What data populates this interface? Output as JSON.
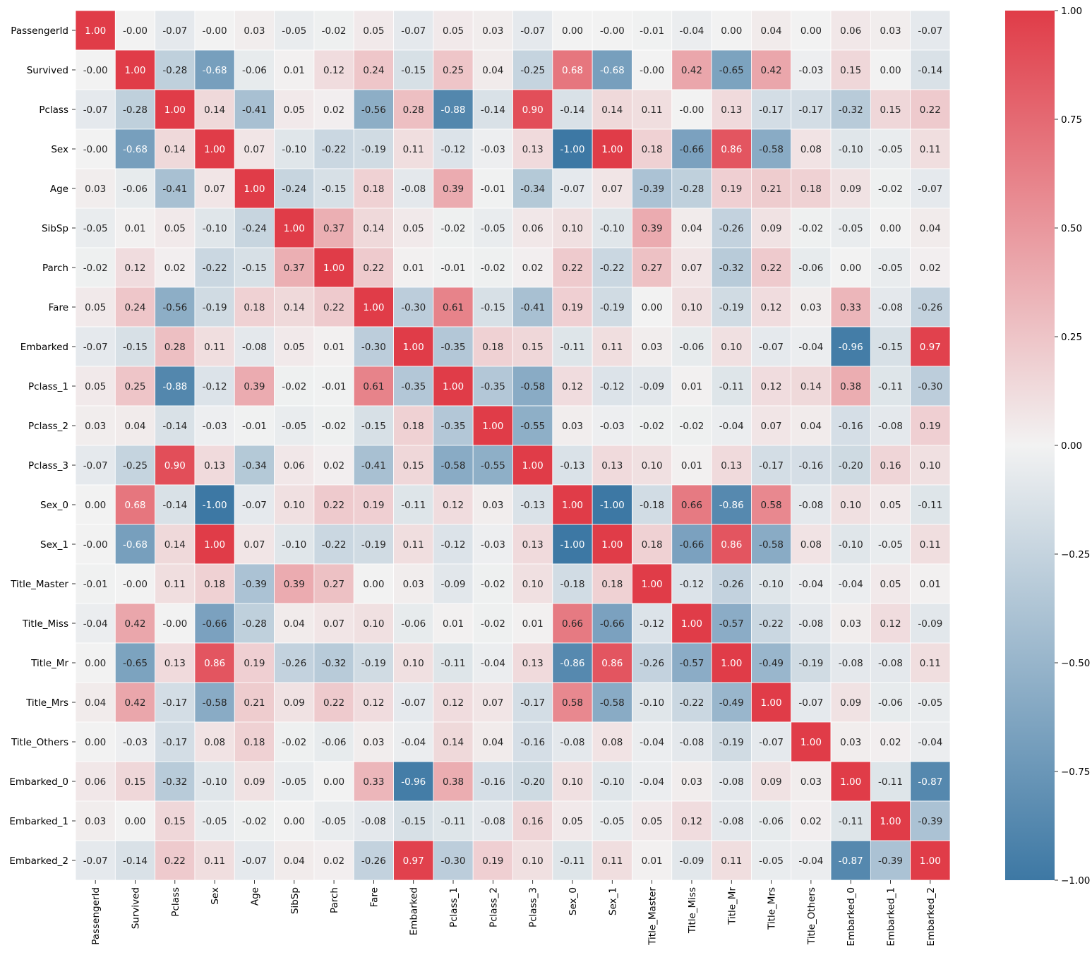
{
  "chart_data": {
    "type": "heatmap",
    "title": "",
    "xlabel": "",
    "ylabel": "",
    "labels": [
      "PassengerId",
      "Survived",
      "Pclass",
      "Sex",
      "Age",
      "SibSp",
      "Parch",
      "Fare",
      "Embarked",
      "Pclass_1",
      "Pclass_2",
      "Pclass_3",
      "Sex_0",
      "Sex_1",
      "Title_Master",
      "Title_Miss",
      "Title_Mr",
      "Title_Mrs",
      "Title_Others",
      "Embarked_0",
      "Embarked_1",
      "Embarked_2"
    ],
    "matrix": [
      [
        1.0,
        -0.0,
        -0.07,
        -0.0,
        0.03,
        -0.05,
        -0.02,
        0.05,
        -0.07,
        0.05,
        0.03,
        -0.07,
        0.0,
        -0.0,
        -0.01,
        -0.04,
        0.0,
        0.04,
        0.0,
        0.06,
        0.03,
        -0.07
      ],
      [
        -0.0,
        1.0,
        -0.28,
        -0.68,
        -0.06,
        0.01,
        0.12,
        0.24,
        -0.15,
        0.25,
        0.04,
        -0.25,
        0.68,
        -0.68,
        -0.0,
        0.42,
        -0.65,
        0.42,
        -0.03,
        0.15,
        0.0,
        -0.14
      ],
      [
        -0.07,
        -0.28,
        1.0,
        0.14,
        -0.41,
        0.05,
        0.02,
        -0.56,
        0.28,
        -0.88,
        -0.14,
        0.9,
        -0.14,
        0.14,
        0.11,
        -0.0,
        0.13,
        -0.17,
        -0.17,
        -0.32,
        0.15,
        0.22
      ],
      [
        -0.0,
        -0.68,
        0.14,
        1.0,
        0.07,
        -0.1,
        -0.22,
        -0.19,
        0.11,
        -0.12,
        -0.03,
        0.13,
        -1.0,
        1.0,
        0.18,
        -0.66,
        0.86,
        -0.58,
        0.08,
        -0.1,
        -0.05,
        0.11
      ],
      [
        0.03,
        -0.06,
        -0.41,
        0.07,
        1.0,
        -0.24,
        -0.15,
        0.18,
        -0.08,
        0.39,
        -0.01,
        -0.34,
        -0.07,
        0.07,
        -0.39,
        -0.28,
        0.19,
        0.21,
        0.18,
        0.09,
        -0.02,
        -0.07
      ],
      [
        -0.05,
        0.01,
        0.05,
        -0.1,
        -0.24,
        1.0,
        0.37,
        0.14,
        0.05,
        -0.02,
        -0.05,
        0.06,
        0.1,
        -0.1,
        0.39,
        0.04,
        -0.26,
        0.09,
        -0.02,
        -0.05,
        0.0,
        0.04
      ],
      [
        -0.02,
        0.12,
        0.02,
        -0.22,
        -0.15,
        0.37,
        1.0,
        0.22,
        0.01,
        -0.01,
        -0.02,
        0.02,
        0.22,
        -0.22,
        0.27,
        0.07,
        -0.32,
        0.22,
        -0.06,
        0.0,
        -0.05,
        0.02
      ],
      [
        0.05,
        0.24,
        -0.56,
        -0.19,
        0.18,
        0.14,
        0.22,
        1.0,
        -0.3,
        0.61,
        -0.15,
        -0.41,
        0.19,
        -0.19,
        0.0,
        0.1,
        -0.19,
        0.12,
        0.03,
        0.33,
        -0.08,
        -0.26
      ],
      [
        -0.07,
        -0.15,
        0.28,
        0.11,
        -0.08,
        0.05,
        0.01,
        -0.3,
        1.0,
        -0.35,
        0.18,
        0.15,
        -0.11,
        0.11,
        0.03,
        -0.06,
        0.1,
        -0.07,
        -0.04,
        -0.96,
        -0.15,
        0.97
      ],
      [
        0.05,
        0.25,
        -0.88,
        -0.12,
        0.39,
        -0.02,
        -0.01,
        0.61,
        -0.35,
        1.0,
        -0.35,
        -0.58,
        0.12,
        -0.12,
        -0.09,
        0.01,
        -0.11,
        0.12,
        0.14,
        0.38,
        -0.11,
        -0.3
      ],
      [
        0.03,
        0.04,
        -0.14,
        -0.03,
        -0.01,
        -0.05,
        -0.02,
        -0.15,
        0.18,
        -0.35,
        1.0,
        -0.55,
        0.03,
        -0.03,
        -0.02,
        -0.02,
        -0.04,
        0.07,
        0.04,
        -0.16,
        -0.08,
        0.19
      ],
      [
        -0.07,
        -0.25,
        0.9,
        0.13,
        -0.34,
        0.06,
        0.02,
        -0.41,
        0.15,
        -0.58,
        -0.55,
        1.0,
        -0.13,
        0.13,
        0.1,
        0.01,
        0.13,
        -0.17,
        -0.16,
        -0.2,
        0.16,
        0.1
      ],
      [
        0.0,
        0.68,
        -0.14,
        -1.0,
        -0.07,
        0.1,
        0.22,
        0.19,
        -0.11,
        0.12,
        0.03,
        -0.13,
        1.0,
        -1.0,
        -0.18,
        0.66,
        -0.86,
        0.58,
        -0.08,
        0.1,
        0.05,
        -0.11
      ],
      [
        -0.0,
        -0.68,
        0.14,
        1.0,
        0.07,
        -0.1,
        -0.22,
        -0.19,
        0.11,
        -0.12,
        -0.03,
        0.13,
        -1.0,
        1.0,
        0.18,
        -0.66,
        0.86,
        -0.58,
        0.08,
        -0.1,
        -0.05,
        0.11
      ],
      [
        -0.01,
        -0.0,
        0.11,
        0.18,
        -0.39,
        0.39,
        0.27,
        0.0,
        0.03,
        -0.09,
        -0.02,
        0.1,
        -0.18,
        0.18,
        1.0,
        -0.12,
        -0.26,
        -0.1,
        -0.04,
        -0.04,
        0.05,
        0.01
      ],
      [
        -0.04,
        0.42,
        -0.0,
        -0.66,
        -0.28,
        0.04,
        0.07,
        0.1,
        -0.06,
        0.01,
        -0.02,
        0.01,
        0.66,
        -0.66,
        -0.12,
        1.0,
        -0.57,
        -0.22,
        -0.08,
        0.03,
        0.12,
        -0.09
      ],
      [
        0.0,
        -0.65,
        0.13,
        0.86,
        0.19,
        -0.26,
        -0.32,
        -0.19,
        0.1,
        -0.11,
        -0.04,
        0.13,
        -0.86,
        0.86,
        -0.26,
        -0.57,
        1.0,
        -0.49,
        -0.19,
        -0.08,
        -0.08,
        0.11
      ],
      [
        0.04,
        0.42,
        -0.17,
        -0.58,
        0.21,
        0.09,
        0.22,
        0.12,
        -0.07,
        0.12,
        0.07,
        -0.17,
        0.58,
        -0.58,
        -0.1,
        -0.22,
        -0.49,
        1.0,
        -0.07,
        0.09,
        -0.06,
        -0.05
      ],
      [
        0.0,
        -0.03,
        -0.17,
        0.08,
        0.18,
        -0.02,
        -0.06,
        0.03,
        -0.04,
        0.14,
        0.04,
        -0.16,
        -0.08,
        0.08,
        -0.04,
        -0.08,
        -0.19,
        -0.07,
        1.0,
        0.03,
        0.02,
        -0.04
      ],
      [
        0.06,
        0.15,
        -0.32,
        -0.1,
        0.09,
        -0.05,
        0.0,
        0.33,
        -0.96,
        0.38,
        -0.16,
        -0.2,
        0.1,
        -0.1,
        -0.04,
        0.03,
        -0.08,
        0.09,
        0.03,
        1.0,
        -0.11,
        -0.87
      ],
      [
        0.03,
        0.0,
        0.15,
        -0.05,
        -0.02,
        0.0,
        -0.05,
        -0.08,
        -0.15,
        -0.11,
        -0.08,
        0.16,
        0.05,
        -0.05,
        0.05,
        0.12,
        -0.08,
        -0.06,
        0.02,
        -0.11,
        1.0,
        -0.39
      ],
      [
        -0.07,
        -0.14,
        0.22,
        0.11,
        -0.07,
        0.04,
        0.02,
        -0.26,
        0.97,
        -0.3,
        0.19,
        0.1,
        -0.11,
        0.11,
        0.01,
        -0.09,
        0.11,
        -0.05,
        -0.04,
        -0.87,
        -0.39,
        1.0
      ]
    ],
    "vmin": -1.0,
    "vmax": 1.0,
    "colormap": {
      "negative": "#3d78a4",
      "center": "#f2f2f2",
      "positive": "#e03c48"
    },
    "colorbar_ticks": [
      1.0,
      0.75,
      0.5,
      0.25,
      0.0,
      -0.25,
      -0.5,
      -0.75,
      -1.0
    ],
    "colorbar_tick_labels": [
      "1.00",
      "0.75",
      "0.50",
      "0.25",
      "0.00",
      "−0.25",
      "−0.50",
      "−0.75",
      "−1.00"
    ],
    "cell_separator_color": "#ffffff",
    "annotation_format": "2 decimals"
  }
}
